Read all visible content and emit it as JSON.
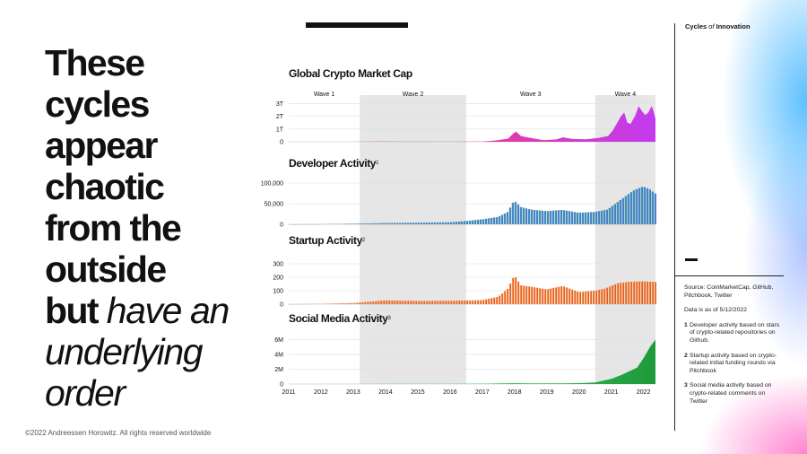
{
  "headline": {
    "lines": [
      "These",
      "cycles",
      "appear",
      "chaotic",
      "from the",
      "outside"
    ],
    "bold_tail": "but",
    "italic_tail": [
      "have an",
      "underlying",
      "order"
    ]
  },
  "copyright": "©2022 Andreessen Horowitz. All rights reserved worldwide",
  "sidebar": {
    "title_a": "Cycles",
    "title_of": "of",
    "title_b": "Innovation",
    "source": "Source: CoinMarketCap, GitHub, Pitchbook, Twitter",
    "date_note": "Data is as of 5/12/2022",
    "footnotes": [
      {
        "num": "1",
        "text": "Developer activity based on stars of crypto-related repositories on Github."
      },
      {
        "num": "2",
        "text": "Startup activity based on crypto-related initial funding rounds via Pitchbook"
      },
      {
        "num": "3",
        "text": "Social media activity based on crypto-related comments on Twitter"
      }
    ]
  },
  "colors": {
    "market": [
      "#b01818",
      "#e83a9a",
      "#c23bf0"
    ],
    "dev": [
      "#1e9a4c",
      "#3aa0e8",
      "#7744e0"
    ],
    "startup": [
      "#f2b14a",
      "#f07a3a",
      "#e0402e"
    ],
    "social": [
      "#a6e8c4",
      "#3fc46a",
      "#1f9a3a"
    ],
    "wave_band": "#e6e6e6"
  },
  "chart_data": {
    "type": "area",
    "x_range": [
      2011,
      2022.37
    ],
    "x_ticks": [
      "2011",
      "2012",
      "2013",
      "2014",
      "2015",
      "2016",
      "2017",
      "2018",
      "2019",
      "2020",
      "2021",
      "2022"
    ],
    "waves": [
      {
        "label": "Wave 1",
        "start": 2011.0,
        "end": 2013.2
      },
      {
        "label": "Wave 2",
        "start": 2013.2,
        "end": 2016.5
      },
      {
        "label": "Wave 3",
        "start": 2016.5,
        "end": 2020.5
      },
      {
        "label": "Wave 4",
        "start": 2020.5,
        "end": 2022.37
      }
    ],
    "shaded_waves": [
      1,
      3
    ],
    "panels": [
      {
        "title": "Global Crypto Market Cap",
        "sup": "",
        "mark": "area",
        "yticks": [
          {
            "v": 0,
            "l": "0"
          },
          {
            "v": 1,
            "l": "1T"
          },
          {
            "v": 2,
            "l": "2T"
          },
          {
            "v": 3,
            "l": "3T"
          }
        ],
        "ymax": 3.1,
        "unit": "trillion USD",
        "points": [
          [
            2011.0,
            0.0
          ],
          [
            2012.0,
            0.001
          ],
          [
            2013.0,
            0.002
          ],
          [
            2013.9,
            0.013
          ],
          [
            2014.5,
            0.008
          ],
          [
            2015.5,
            0.005
          ],
          [
            2016.5,
            0.012
          ],
          [
            2017.0,
            0.018
          ],
          [
            2017.4,
            0.1
          ],
          [
            2017.8,
            0.25
          ],
          [
            2017.95,
            0.62
          ],
          [
            2018.05,
            0.8
          ],
          [
            2018.2,
            0.45
          ],
          [
            2018.5,
            0.3
          ],
          [
            2018.9,
            0.12
          ],
          [
            2019.3,
            0.18
          ],
          [
            2019.5,
            0.35
          ],
          [
            2019.8,
            0.22
          ],
          [
            2020.2,
            0.2
          ],
          [
            2020.6,
            0.3
          ],
          [
            2020.9,
            0.45
          ],
          [
            2021.05,
            0.9
          ],
          [
            2021.3,
            2.0
          ],
          [
            2021.4,
            2.3
          ],
          [
            2021.5,
            1.5
          ],
          [
            2021.6,
            1.4
          ],
          [
            2021.75,
            2.1
          ],
          [
            2021.85,
            2.8
          ],
          [
            2021.95,
            2.4
          ],
          [
            2022.05,
            2.1
          ],
          [
            2022.15,
            2.3
          ],
          [
            2022.25,
            2.8
          ],
          [
            2022.3,
            2.5
          ],
          [
            2022.37,
            1.8
          ]
        ]
      },
      {
        "title": "Developer Activity",
        "sup": "1",
        "mark": "bar",
        "yticks": [
          {
            "v": 0,
            "l": "0"
          },
          {
            "v": 50000,
            "l": "50,000"
          },
          {
            "v": 100000,
            "l": "100,000"
          }
        ],
        "ymax": 100000,
        "unit": "stars",
        "points": [
          [
            2011.0,
            0
          ],
          [
            2012.0,
            300
          ],
          [
            2013.0,
            1500
          ],
          [
            2014.0,
            3000
          ],
          [
            2015.0,
            4000
          ],
          [
            2016.0,
            5000
          ],
          [
            2016.5,
            8000
          ],
          [
            2017.0,
            12000
          ],
          [
            2017.5,
            18000
          ],
          [
            2017.8,
            30000
          ],
          [
            2018.0,
            58000
          ],
          [
            2018.2,
            42000
          ],
          [
            2018.5,
            36000
          ],
          [
            2019.0,
            32000
          ],
          [
            2019.5,
            35000
          ],
          [
            2020.0,
            28000
          ],
          [
            2020.5,
            30000
          ],
          [
            2020.9,
            36000
          ],
          [
            2021.1,
            48000
          ],
          [
            2021.4,
            65000
          ],
          [
            2021.7,
            82000
          ],
          [
            2022.0,
            92000
          ],
          [
            2022.2,
            85000
          ],
          [
            2022.37,
            75000
          ]
        ]
      },
      {
        "title": "Startup Activity",
        "sup": "2",
        "mark": "bar",
        "yticks": [
          {
            "v": 0,
            "l": "0"
          },
          {
            "v": 100,
            "l": "100"
          },
          {
            "v": 200,
            "l": "200"
          },
          {
            "v": 300,
            "l": "300"
          }
        ],
        "ymax": 300,
        "unit": "funding rounds",
        "points": [
          [
            2011.0,
            0
          ],
          [
            2012.0,
            2
          ],
          [
            2013.0,
            8
          ],
          [
            2014.0,
            28
          ],
          [
            2015.0,
            24
          ],
          [
            2016.0,
            25
          ],
          [
            2017.0,
            30
          ],
          [
            2017.5,
            55
          ],
          [
            2017.8,
            115
          ],
          [
            2018.0,
            215
          ],
          [
            2018.2,
            140
          ],
          [
            2018.5,
            130
          ],
          [
            2019.0,
            110
          ],
          [
            2019.5,
            135
          ],
          [
            2020.0,
            90
          ],
          [
            2020.5,
            100
          ],
          [
            2020.8,
            115
          ],
          [
            2021.2,
            155
          ],
          [
            2021.5,
            165
          ],
          [
            2022.0,
            170
          ],
          [
            2022.37,
            165
          ]
        ]
      },
      {
        "title": "Social Media Activity",
        "sup": "3",
        "mark": "area",
        "yticks": [
          {
            "v": 0,
            "l": "0"
          },
          {
            "v": 2,
            "l": "2M"
          },
          {
            "v": 4,
            "l": "4M"
          },
          {
            "v": 6,
            "l": "6M"
          }
        ],
        "ymax": 6.3,
        "unit": "million comments",
        "points": [
          [
            2011.0,
            0
          ],
          [
            2014.0,
            0.02
          ],
          [
            2016.0,
            0.03
          ],
          [
            2017.0,
            0.05
          ],
          [
            2018.0,
            0.12
          ],
          [
            2018.5,
            0.1
          ],
          [
            2019.5,
            0.08
          ],
          [
            2020.0,
            0.12
          ],
          [
            2020.5,
            0.2
          ],
          [
            2021.0,
            0.7
          ],
          [
            2021.3,
            1.2
          ],
          [
            2021.5,
            1.6
          ],
          [
            2021.8,
            2.2
          ],
          [
            2022.0,
            3.5
          ],
          [
            2022.2,
            5.0
          ],
          [
            2022.37,
            6.0
          ]
        ]
      }
    ]
  }
}
